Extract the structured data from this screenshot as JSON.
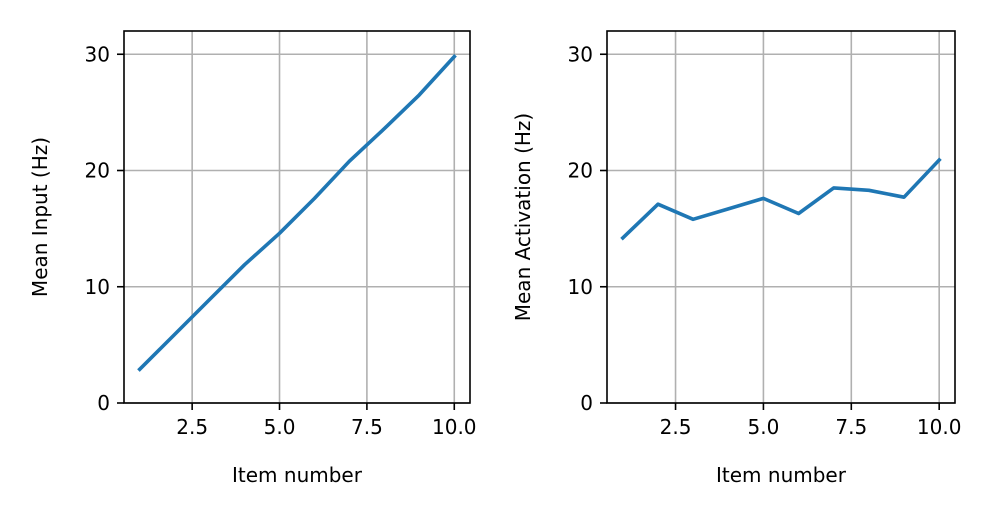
{
  "chart_data": [
    {
      "type": "line",
      "title": "",
      "xlabel": "Item number",
      "ylabel": "Mean Input (Hz)",
      "xlim": [
        0.55,
        10.45
      ],
      "ylim": [
        0,
        32
      ],
      "xticks": [
        2.5,
        5.0,
        7.5,
        10.0
      ],
      "xtick_labels": [
        "2.5",
        "5.0",
        "7.5",
        "10.0"
      ],
      "yticks": [
        0,
        10,
        20,
        30
      ],
      "ytick_labels": [
        "0",
        "10",
        "20",
        "30"
      ],
      "grid": true,
      "series": [
        {
          "name": "Mean Input",
          "color": "#1f77b4",
          "x": [
            1,
            2,
            3,
            4,
            5,
            6,
            7,
            8,
            9,
            10
          ],
          "y": [
            2.9,
            5.9,
            8.9,
            11.9,
            14.6,
            17.6,
            20.8,
            23.6,
            26.5,
            29.8
          ]
        }
      ]
    },
    {
      "type": "line",
      "title": "",
      "xlabel": "Item number",
      "ylabel": "Mean Activation (Hz)",
      "xlim": [
        0.55,
        10.45
      ],
      "ylim": [
        0,
        32
      ],
      "xticks": [
        2.5,
        5.0,
        7.5,
        10.0
      ],
      "xtick_labels": [
        "2.5",
        "5.0",
        "7.5",
        "10.0"
      ],
      "yticks": [
        0,
        10,
        20,
        30
      ],
      "ytick_labels": [
        "0",
        "10",
        "20",
        "30"
      ],
      "grid": true,
      "series": [
        {
          "name": "Mean Activation",
          "color": "#1f77b4",
          "x": [
            1,
            2,
            3,
            4,
            5,
            6,
            7,
            8,
            9,
            10
          ],
          "y": [
            14.2,
            17.1,
            15.8,
            16.7,
            17.6,
            16.3,
            18.5,
            18.3,
            17.7,
            20.9
          ]
        }
      ]
    }
  ]
}
